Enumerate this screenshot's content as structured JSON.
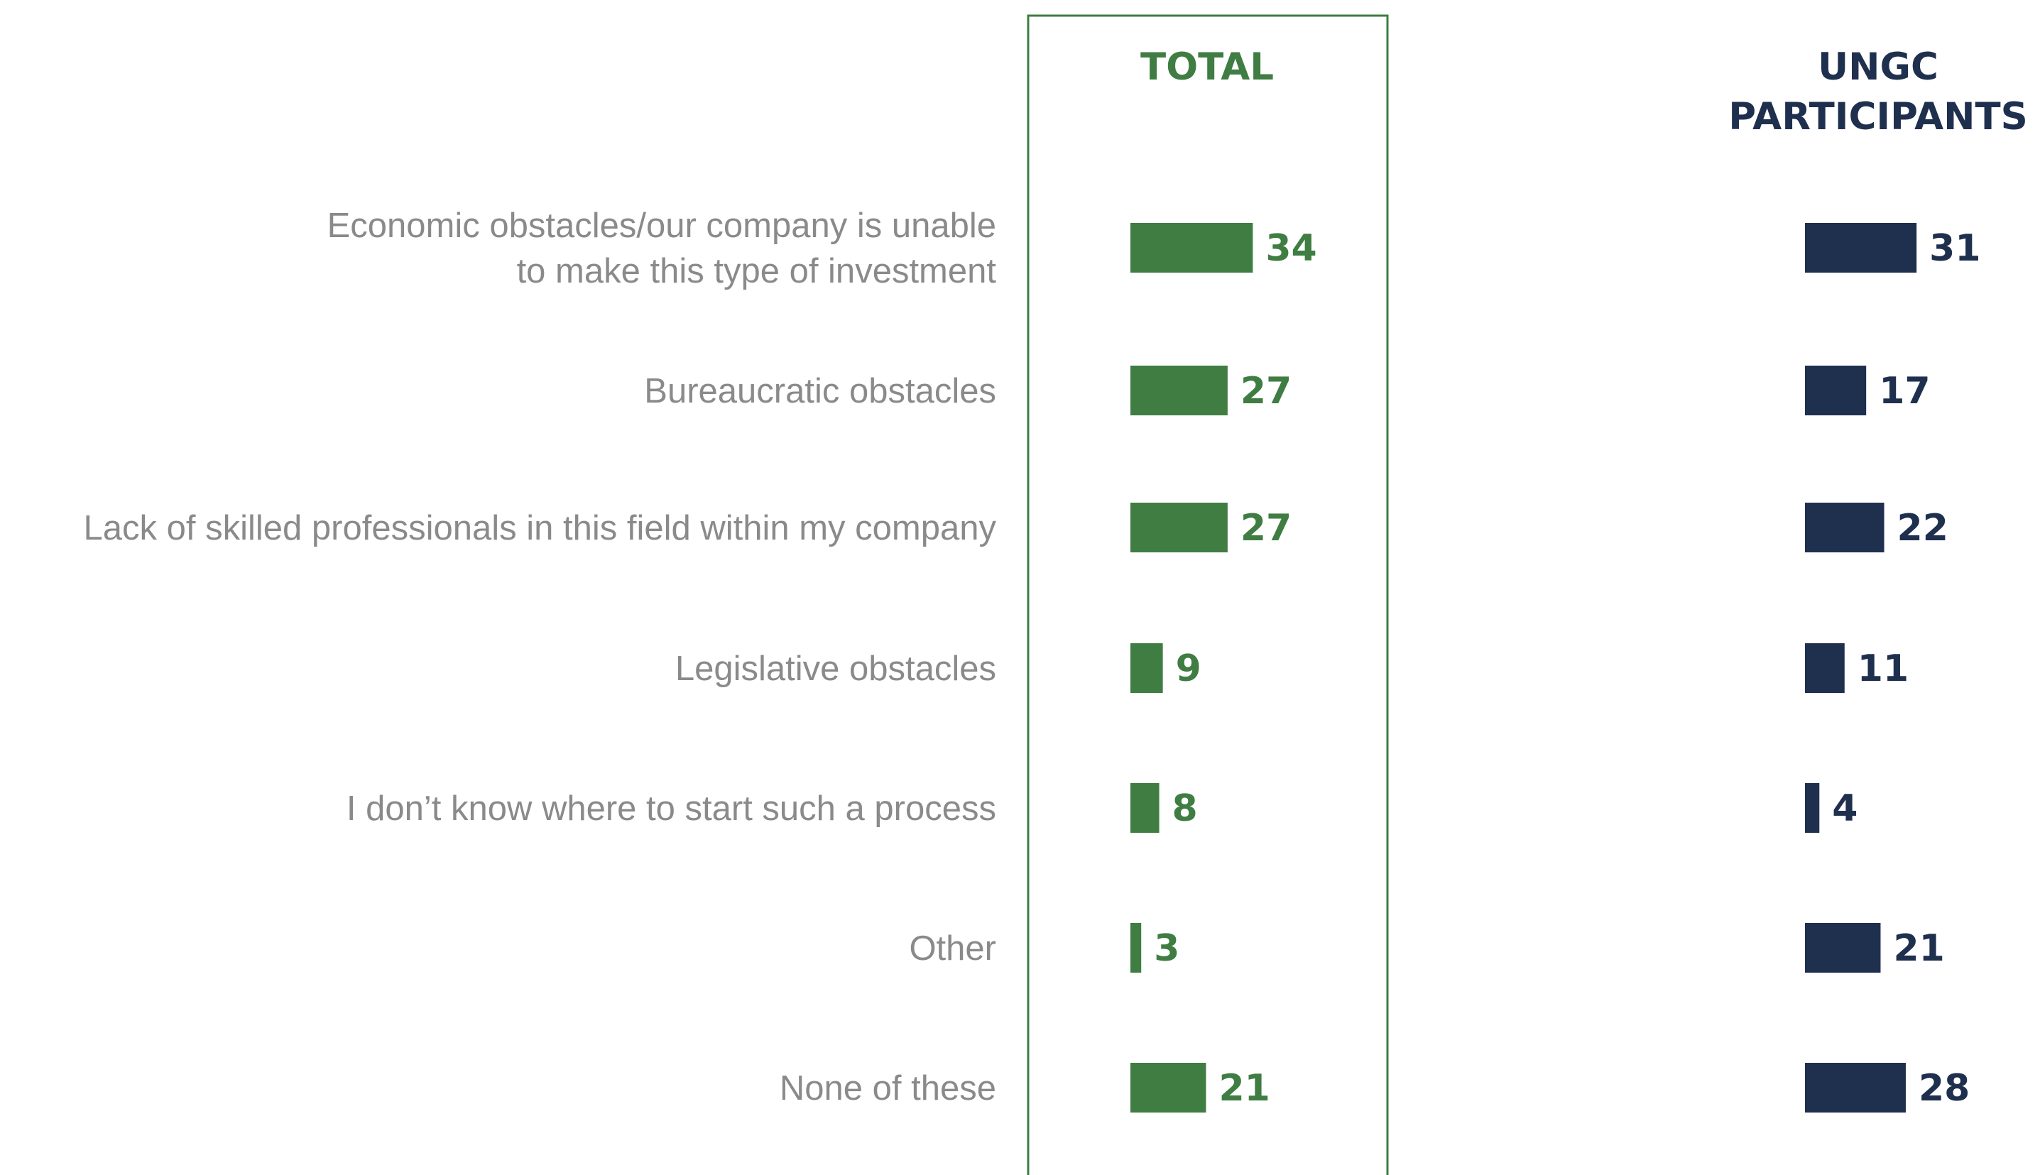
{
  "chart_data": {
    "type": "bar",
    "orientation": "horizontal",
    "categories": [
      [
        "Economic obstacles/our company is unable",
        "to make this type of investment"
      ],
      [
        "Bureaucratic obstacles"
      ],
      [
        "Lack of skilled professionals in this field within my company"
      ],
      [
        "Legislative obstacles"
      ],
      [
        "I don’t know where to start such a process"
      ],
      [
        "Other"
      ],
      [
        "None of these"
      ]
    ],
    "series": [
      {
        "name": [
          "TOTAL"
        ],
        "color": "#3f7d43",
        "values": [
          34,
          27,
          27,
          9,
          8,
          3,
          21
        ]
      },
      {
        "name": [
          "UNGC",
          "PARTICIPANTS"
        ],
        "color": "#1f2f4e",
        "values": [
          31,
          17,
          22,
          11,
          4,
          21,
          28
        ]
      }
    ],
    "label_color": "#8a8a8a",
    "highlight_box_color": "#3f7d43",
    "grid": false
  }
}
